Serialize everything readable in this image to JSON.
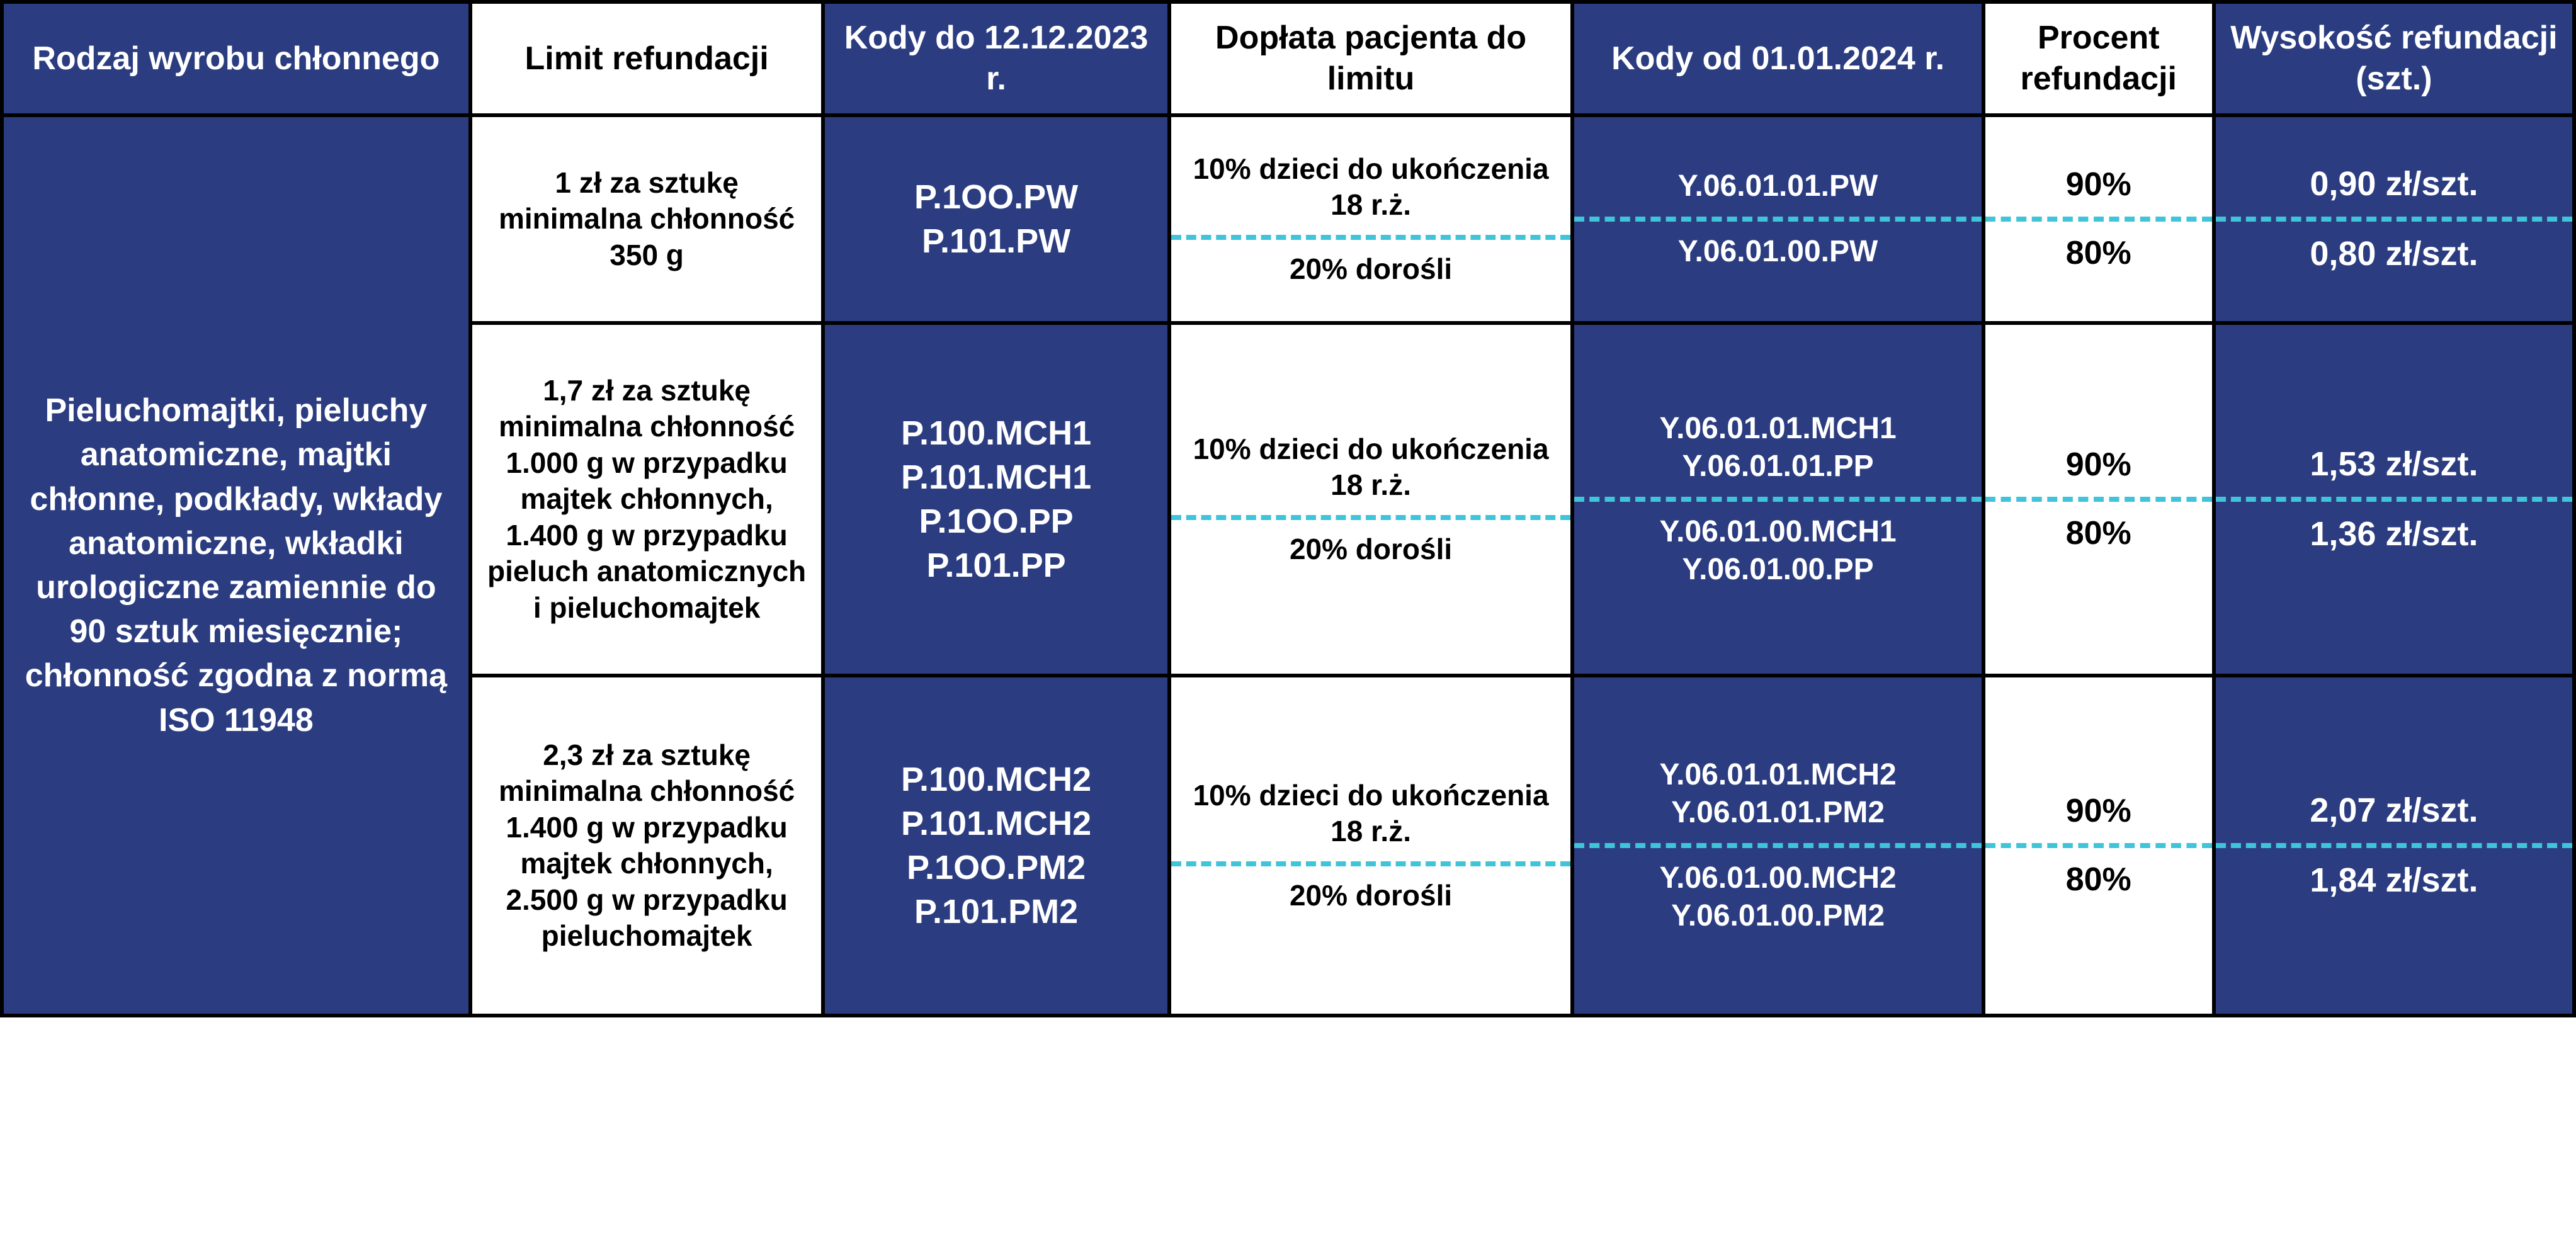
{
  "colors": {
    "blue": "#2b3d80",
    "dash": "#3fc4d9",
    "black": "#000000",
    "white": "#ffffff"
  },
  "headers": {
    "c1": "Rodzaj wyrobu chłonnego",
    "c2": "Limit refundacji",
    "c3": "Kody do 12.12.2023 r.",
    "c4": "Dopłata pacjenta do limitu",
    "c5": "Kody od 01.01.2024 r.",
    "c6": "Procent refundacji",
    "c7": "Wysokość refundacji (szt.)"
  },
  "rowLabel": "Pieluchomajtki, pieluchy anatomiczne, majtki chłonne, podkłady, wkłady anatomiczne, wkładki urologiczne zamiennie do 90 sztuk miesięcznie; chłonność zgodna z normą ISO 11948",
  "groups": [
    {
      "limit": "1 zł za sztukę minimalna chłonność 350 g",
      "codesOld": "P.1OO.PW\nP.101.PW",
      "top": {
        "pay": "10% dzieci do ukończenia 18 r.ż.",
        "codeNew": "Y.06.01.01.PW",
        "pct": "90%",
        "amt": "0,90 zł/szt."
      },
      "bot": {
        "pay": "20% dorośli",
        "codeNew": "Y.06.01.00.PW",
        "pct": "80%",
        "amt": "0,80 zł/szt."
      }
    },
    {
      "limit": "1,7 zł za sztukę minimalna chłonność 1.000 g w przypadku majtek chłonnych, 1.400 g w przypadku pieluch anatomicznych i pieluchomajtek",
      "codesOld": "P.100.MCH1\nP.101.MCH1\nP.1OO.PP\nP.101.PP",
      "top": {
        "pay": "10% dzieci do ukończenia 18 r.ż.",
        "codeNew": "Y.06.01.01.MCH1\nY.06.01.01.PP",
        "pct": "90%",
        "amt": "1,53 zł/szt."
      },
      "bot": {
        "pay": "20% dorośli",
        "codeNew": "Y.06.01.00.MCH1\nY.06.01.00.PP",
        "pct": "80%",
        "amt": "1,36 zł/szt."
      }
    },
    {
      "limit": "2,3 zł za sztukę minimalna chłonność 1.400 g w przypadku majtek chłonnych, 2.500 g w przypadku pieluchomajtek",
      "codesOld": "P.100.MCH2\nP.101.MCH2\nP.1OO.PM2\nP.101.PM2",
      "top": {
        "pay": "10% dzieci do ukończenia 18 r.ż.",
        "codeNew": "Y.06.01.01.MCH2\nY.06.01.01.PM2",
        "pct": "90%",
        "amt": "2,07 zł/szt."
      },
      "bot": {
        "pay": "20% dorośli",
        "codeNew": "Y.06.01.00.MCH2\nY.06.01.00.PM2",
        "pct": "80%",
        "amt": "1,84 zł/szt."
      }
    }
  ]
}
